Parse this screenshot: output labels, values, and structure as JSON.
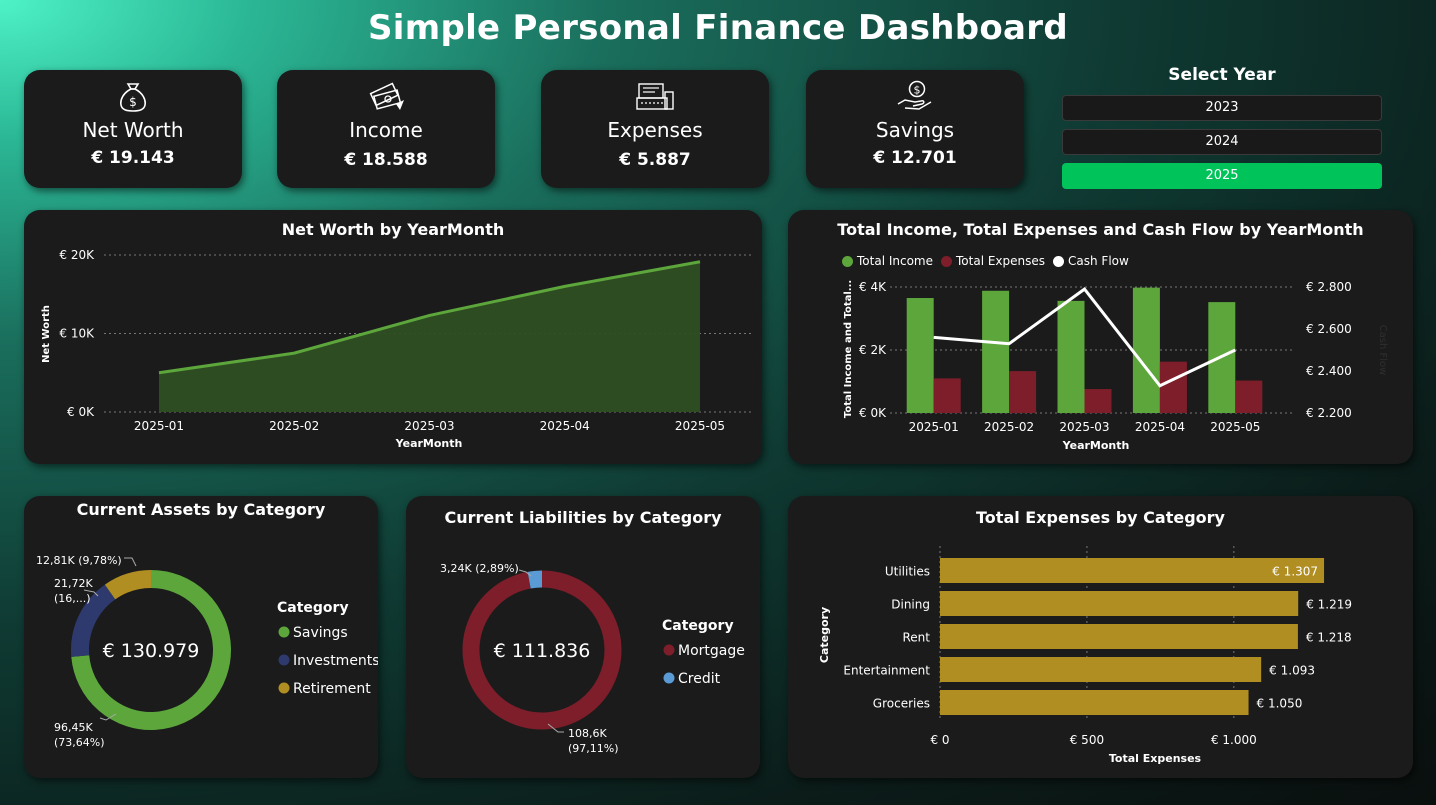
{
  "title": "Simple Personal Finance Dashboard",
  "kpis": [
    {
      "label": "Net Worth",
      "value": "€ 19.143",
      "icon": "money-bag-icon"
    },
    {
      "label": "Income",
      "value": "€ 18.588",
      "icon": "cash-stack-icon"
    },
    {
      "label": "Expenses",
      "value": "€ 5.887",
      "icon": "cash-register-icon"
    },
    {
      "label": "Savings",
      "value": "€ 12.701",
      "icon": "hand-coin-icon"
    }
  ],
  "year_slicer": {
    "title": "Select Year",
    "options": [
      "2023",
      "2024",
      "2025"
    ],
    "selected": "2025"
  },
  "colors": {
    "green": "#5ca63c",
    "area_fill": "#2f4f22",
    "red": "#7d1e2a",
    "white": "#ffffff",
    "navy": "#2e3a6e",
    "gold": "#b08e22",
    "blue": "#5b9bd5",
    "slicer_selected": "#00c35a"
  },
  "chart_data": [
    {
      "id": "net-worth",
      "type": "area",
      "title": "Net Worth by YearMonth",
      "xlabel": "YearMonth",
      "ylabel": "Net Worth",
      "x": [
        "2025-01",
        "2025-02",
        "2025-03",
        "2025-04",
        "2025-05"
      ],
      "values": [
        5000,
        7500,
        12300,
        16000,
        19143
      ],
      "ylim": [
        0,
        20000
      ],
      "yticks": [
        "€ 0K",
        "€ 10K",
        "€ 20K"
      ],
      "grid": true
    },
    {
      "id": "income-expenses",
      "type": "bar",
      "title": "Total Income, Total Expenses and Cash Flow by YearMonth",
      "xlabel": "YearMonth",
      "ylabel": "Total Income and Total...",
      "y2label": "Cash Flow",
      "categories": [
        "2025-01",
        "2025-02",
        "2025-03",
        "2025-04",
        "2025-05"
      ],
      "series": [
        {
          "name": "Total Income",
          "type": "bar",
          "values": [
            3650,
            3880,
            3560,
            3980,
            3520
          ]
        },
        {
          "name": "Total Expenses",
          "type": "bar",
          "values": [
            1100,
            1330,
            760,
            1630,
            1030
          ]
        },
        {
          "name": "Cash Flow",
          "type": "line",
          "axis": "right",
          "values": [
            2560,
            2530,
            2790,
            2330,
            2500
          ]
        }
      ],
      "ylim": [
        0,
        4000
      ],
      "y2lim": [
        2200,
        2800
      ],
      "yticks": [
        "€ 0K",
        "€ 2K",
        "€ 4K"
      ],
      "y2ticks": [
        "€ 2.200",
        "€ 2.400",
        "€ 2.600",
        "€ 2.800"
      ],
      "legend": "top-left"
    },
    {
      "id": "assets",
      "type": "pie",
      "title": "Current Assets by Category",
      "center_label": "€ 130.979",
      "legend_title": "Category",
      "slices": [
        {
          "name": "Savings",
          "value": 96.45,
          "label": "96,45K",
          "pct": "(73,64%)"
        },
        {
          "name": "Investments",
          "value": 21.72,
          "label": "21,72K",
          "pct": "(16,...)"
        },
        {
          "name": "Retirement",
          "value": 12.81,
          "label": "12,81K (9,78%)",
          "pct": ""
        }
      ]
    },
    {
      "id": "liabilities",
      "type": "pie",
      "title": "Current Liabilities by Category",
      "center_label": "€ 111.836",
      "legend_title": "Category",
      "slices": [
        {
          "name": "Mortgage",
          "value": 108.6,
          "label": "108,6K",
          "pct": "(97,11%)"
        },
        {
          "name": "Credit",
          "value": 3.24,
          "label": "3,24K (2,89%)",
          "pct": ""
        }
      ]
    },
    {
      "id": "expenses-category",
      "type": "bar",
      "orientation": "horizontal",
      "title": "Total Expenses by Category",
      "xlabel": "Total Expenses",
      "ylabel": "Category",
      "categories": [
        "Utilities",
        "Dining",
        "Rent",
        "Entertainment",
        "Groceries"
      ],
      "values": [
        1307,
        1219,
        1218,
        1093,
        1050
      ],
      "value_labels": [
        "€ 1.307",
        "€ 1.219",
        "€ 1.218",
        "€ 1.093",
        "€ 1.050"
      ],
      "xlim": [
        0,
        1300
      ],
      "xticks": [
        "€ 0",
        "€ 500",
        "€ 1.000"
      ]
    }
  ]
}
